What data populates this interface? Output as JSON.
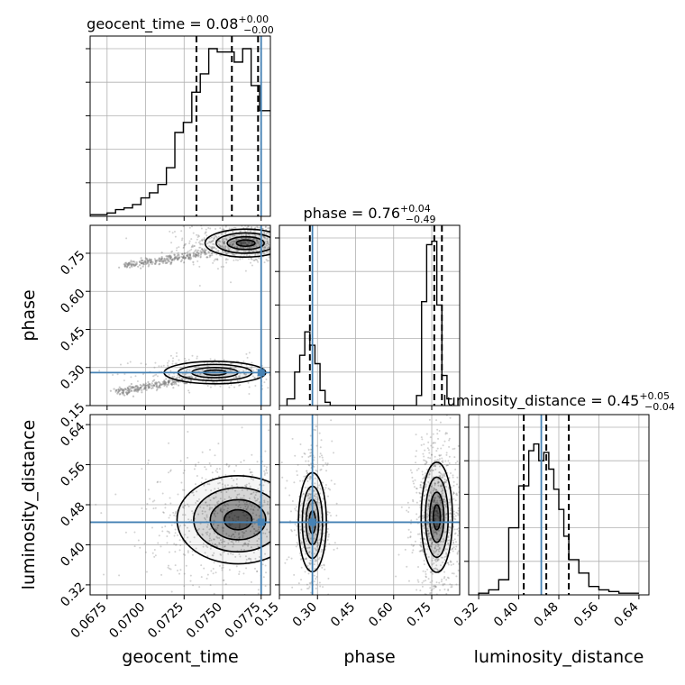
{
  "chart_data": {
    "type": "corner",
    "parameters": [
      {
        "name": "geocent_time",
        "axis_label": "geocent_time",
        "title": "geocent_time = 0.08",
        "title_main": "geocent_time = 0.08",
        "title_plus": "+0.00",
        "title_minus": "−0.00",
        "lim": [
          0.0664,
          0.0781
        ],
        "ticks": [
          0.0675,
          0.07,
          0.0725,
          0.075,
          0.0775
        ],
        "tick_labels": [
          "0.0675",
          "0.0700",
          "0.0725",
          "0.0750",
          "0.0775"
        ],
        "truth": 0.0775,
        "quantiles": [
          0.0733,
          0.0756,
          0.0773
        ],
        "hist_bins": [
          0.0664,
          0.06695,
          0.0675,
          0.06805,
          0.0686,
          0.06915,
          0.0697,
          0.07025,
          0.0708,
          0.07135,
          0.0719,
          0.07245,
          0.073,
          0.07355,
          0.0741,
          0.07465,
          0.0752,
          0.07575,
          0.0763,
          0.07685,
          0.0774,
          0.0781
        ],
        "hist_counts": [
          0.01,
          0.01,
          0.02,
          0.04,
          0.05,
          0.07,
          0.11,
          0.14,
          0.19,
          0.29,
          0.5,
          0.56,
          0.74,
          0.85,
          1.0,
          0.98,
          0.98,
          0.92,
          1.0,
          0.78,
          0.63
        ]
      },
      {
        "name": "phase",
        "axis_label": "phase",
        "title": "phase = 0.76",
        "title_main": "phase = 0.76",
        "title_plus": "+0.04",
        "title_minus": "−0.49",
        "lim": [
          0.15,
          0.86
        ],
        "ticks": [
          0.15,
          0.3,
          0.45,
          0.6,
          0.75
        ],
        "tick_labels": [
          "0.15",
          "0.30",
          "0.45",
          "0.60",
          "0.75"
        ],
        "truth": 0.28,
        "quantiles": [
          0.27,
          0.76,
          0.79
        ],
        "hist_bins": [
          0.18,
          0.21,
          0.23,
          0.25,
          0.27,
          0.29,
          0.31,
          0.33,
          0.35,
          0.37,
          0.4,
          0.69,
          0.71,
          0.73,
          0.75,
          0.77,
          0.79,
          0.81,
          0.83
        ],
        "hist_counts": [
          0.04,
          0.2,
          0.3,
          0.44,
          0.36,
          0.25,
          0.09,
          0.02,
          0.0,
          0.0,
          0.0,
          0.06,
          0.62,
          0.96,
          0.98,
          0.6,
          0.18,
          0.04
        ]
      },
      {
        "name": "luminosity_distance",
        "axis_label": "luminosity_distance",
        "title": "luminosity_distance = 0.45",
        "title_main": "luminosity_distance = 0.45",
        "title_plus": "+0.05",
        "title_minus": "−0.04",
        "lim": [
          0.3,
          0.66
        ],
        "ticks": [
          0.32,
          0.4,
          0.48,
          0.56,
          0.64
        ],
        "tick_labels": [
          "0.32",
          "0.40",
          "0.48",
          "0.56",
          "0.64"
        ],
        "truth": 0.445,
        "quantiles": [
          0.41,
          0.455,
          0.5
        ],
        "hist_bins": [
          0.32,
          0.34,
          0.36,
          0.38,
          0.4,
          0.42,
          0.43,
          0.44,
          0.45,
          0.46,
          0.47,
          0.48,
          0.49,
          0.5,
          0.52,
          0.54,
          0.56,
          0.58,
          0.6,
          0.62,
          0.64
        ],
        "hist_counts": [
          0.01,
          0.03,
          0.09,
          0.4,
          0.65,
          0.86,
          0.9,
          0.8,
          0.85,
          0.75,
          0.63,
          0.51,
          0.35,
          0.21,
          0.13,
          0.05,
          0.03,
          0.02,
          0.01,
          0.01
        ]
      }
    ],
    "pairs": [
      {
        "x": "geocent_time",
        "y": "phase",
        "modes": [
          {
            "cx": 0.0765,
            "cy": 0.79,
            "sx": 0.0012,
            "sy": 0.025,
            "weight": 0.85
          },
          {
            "cx": 0.0745,
            "cy": 0.28,
            "sx": 0.0015,
            "sy": 0.02,
            "weight": 0.35
          }
        ],
        "tails": [
          {
            "from": [
              0.0685,
              0.7
            ],
            "to": [
              0.074,
              0.75
            ]
          },
          {
            "from": [
              0.068,
              0.2
            ],
            "to": [
              0.073,
              0.26
            ]
          }
        ]
      },
      {
        "x": "geocent_time",
        "y": "luminosity_distance",
        "modes": [
          {
            "cx": 0.076,
            "cy": 0.45,
            "sx": 0.0018,
            "sy": 0.04,
            "weight": 1.0
          }
        ],
        "spread": [
          0.0028,
          0.055
        ]
      },
      {
        "x": "phase",
        "y": "luminosity_distance",
        "modes": [
          {
            "cx": 0.28,
            "cy": 0.445,
            "sx": 0.025,
            "sy": 0.045,
            "weight": 0.55
          },
          {
            "cx": 0.77,
            "cy": 0.455,
            "sx": 0.028,
            "sy": 0.05,
            "weight": 1.0
          }
        ]
      }
    ],
    "colors": {
      "truth": "#4682b4",
      "hist": "#000000",
      "grid": "#b0b0b0",
      "points": "#7f7f7f"
    },
    "grid": true
  }
}
